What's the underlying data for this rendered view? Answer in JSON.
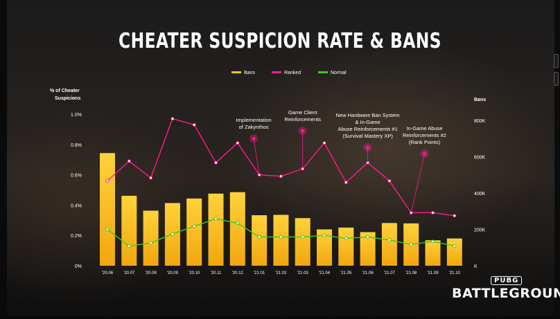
{
  "title": "CHEATER SUSPICION RATE & BANS",
  "logo": {
    "top": "PUBG",
    "bottom": "BATTLEGROUNDS"
  },
  "chart_data": {
    "type": "bar",
    "title": "CHEATER SUSPICION RATE & BANS",
    "categories": [
      "'20.06",
      "'20.07",
      "'20.08",
      "'20.09",
      "'20.10",
      "'20.11",
      "'20.12",
      "'21.01",
      "'21.02",
      "'21.03",
      "'21.04",
      "'21.05",
      "'21.06",
      "'21.07",
      "'21.08",
      "'21.09",
      "'21.10"
    ],
    "left_axis": {
      "label_line1": "% of Cheater",
      "label_line2": "Suspicions",
      "ticks": [
        "0%",
        "0.2%",
        "0.4%",
        "0.6%",
        "0.8%",
        "1.0%"
      ],
      "range": [
        0,
        1.0
      ]
    },
    "right_axis": {
      "label": "Bans",
      "ticks": [
        "K",
        "200K",
        "400K",
        "600K",
        "800K"
      ],
      "range": [
        0,
        800
      ]
    },
    "legend": [
      {
        "name": "Bans",
        "color": "#ffc21a"
      },
      {
        "name": "Ranked",
        "color": "#ff1c8e"
      },
      {
        "name": "Normal",
        "color": "#3dcc1e"
      }
    ],
    "series": [
      {
        "name": "Bans",
        "type": "bar",
        "axis": "right",
        "color": "#ffc21a",
        "values": [
          620,
          385,
          303,
          345,
          370,
          397,
          405,
          278,
          280,
          262,
          200,
          210,
          185,
          235,
          233,
          140,
          150
        ]
      },
      {
        "name": "Ranked",
        "type": "line",
        "axis": "left",
        "color": "#ff1c8e",
        "values": [
          0.56,
          0.69,
          0.58,
          0.97,
          0.93,
          0.68,
          0.81,
          0.6,
          0.59,
          0.64,
          0.81,
          0.55,
          0.68,
          0.56,
          0.35,
          0.35,
          0.33
        ]
      },
      {
        "name": "Normal",
        "type": "line",
        "axis": "left",
        "color": "#3dcc1e",
        "values": [
          0.24,
          0.13,
          0.15,
          0.21,
          0.26,
          0.31,
          0.28,
          0.19,
          0.19,
          0.19,
          0.2,
          0.18,
          0.19,
          0.17,
          0.14,
          0.16,
          0.13
        ]
      }
    ],
    "annotations": [
      {
        "category_index": 7,
        "value": 0.84,
        "lines": [
          "Implementation",
          "of Zakynthos"
        ]
      },
      {
        "category_index": 9,
        "value": 0.89,
        "lines": [
          "Game Client",
          "Reinforcements"
        ]
      },
      {
        "category_index": 12,
        "value": 0.78,
        "lines": [
          "New Hardware Ban System",
          "& In-Game",
          "Abuse Reinforcements #1",
          "(Survival Mastery XP)"
        ]
      },
      {
        "category_index": 15,
        "value": 0.74,
        "lines": [
          "In-Game Abuse",
          "Reinforcements #2",
          "(Rank Points)"
        ]
      }
    ]
  }
}
